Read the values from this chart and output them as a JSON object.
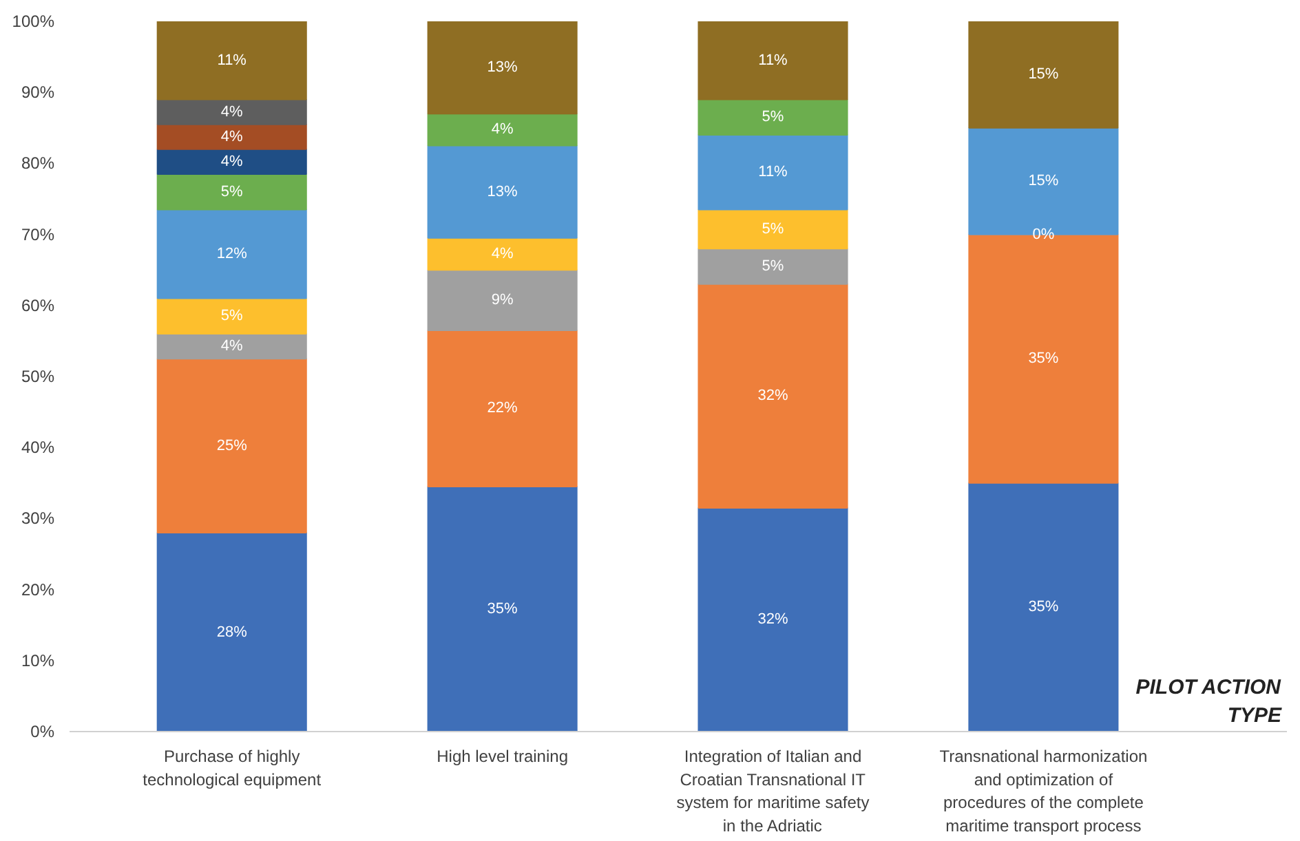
{
  "chart_data": {
    "type": "bar",
    "stacked": true,
    "xlabel": "PILOT ACTION TYPE",
    "categories": [
      "Purchase of highly technological equipment",
      "High level training",
      "Integration of Italian and Croatian Transnational IT system for maritime safety in the Adriatic",
      "Transnational harmonization and optimization of procedures of the complete maritime transport process"
    ],
    "ylim": [
      0,
      100
    ],
    "yticks": [
      {
        "value": 0,
        "label": "0%"
      },
      {
        "value": 10,
        "label": "10%"
      },
      {
        "value": 20,
        "label": "20%"
      },
      {
        "value": 30,
        "label": "30%"
      },
      {
        "value": 40,
        "label": "40%"
      },
      {
        "value": 50,
        "label": "50%"
      },
      {
        "value": 60,
        "label": "60%"
      },
      {
        "value": 70,
        "label": "70%"
      },
      {
        "value": 80,
        "label": "80%"
      },
      {
        "value": 90,
        "label": "90%"
      },
      {
        "value": 100,
        "label": "100%"
      }
    ],
    "grid": false,
    "series": [
      {
        "color": "#3f6fb8",
        "values": [
          28,
          34.5,
          31.5,
          35
        ],
        "value_labels": [
          "28%",
          "35%",
          "32%",
          "35%"
        ]
      },
      {
        "color": "#ee7f3b",
        "values": [
          24.5,
          22,
          31.5,
          35
        ],
        "value_labels": [
          "25%",
          "22%",
          "32%",
          "35%"
        ]
      },
      {
        "color": "#a0a0a0",
        "values": [
          3.5,
          8.5,
          5,
          0
        ],
        "value_labels": [
          "4%",
          "9%",
          "5%",
          "0%"
        ]
      },
      {
        "color": "#fdbf2d",
        "values": [
          5,
          4.5,
          5.5,
          null
        ],
        "value_labels": [
          "5%",
          "4%",
          "5%",
          null
        ]
      },
      {
        "color": "#5499d3",
        "values": [
          12.5,
          13,
          10.5,
          15
        ],
        "value_labels": [
          "12%",
          "13%",
          "11%",
          "15%"
        ]
      },
      {
        "color": "#6cae4e",
        "values": [
          5,
          4.5,
          5,
          null
        ],
        "value_labels": [
          "5%",
          "4%",
          "5%",
          null
        ]
      },
      {
        "color": "#1f4e85",
        "values": [
          3.5,
          null,
          null,
          null
        ],
        "value_labels": [
          "4%",
          null,
          null,
          null
        ]
      },
      {
        "color": "#a44d24",
        "values": [
          3.5,
          null,
          null,
          null
        ],
        "value_labels": [
          "4%",
          null,
          null,
          null
        ]
      },
      {
        "color": "#5e5e5e",
        "values": [
          3.5,
          null,
          null,
          null
        ],
        "value_labels": [
          "4%",
          null,
          null,
          null
        ]
      },
      {
        "color": "#8f6e23",
        "values": [
          11,
          13,
          11,
          15
        ],
        "value_labels": [
          "11%",
          "13%",
          "11%",
          "15%"
        ]
      }
    ]
  }
}
